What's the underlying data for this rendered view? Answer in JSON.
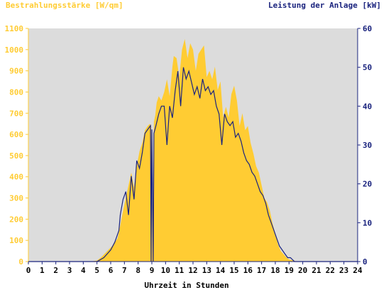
{
  "chart_data": {
    "type": "area",
    "title_left": "Bestrahlungsstärke [W/qm]",
    "title_right": "Leistung der Anlage [kW]",
    "xlabel": "Uhrzeit in Stunden",
    "xlim": [
      0,
      24
    ],
    "x_ticks": [
      "0",
      "1",
      "2",
      "3",
      "4",
      "5",
      "6",
      "7",
      "8",
      "9",
      "10",
      "11",
      "12",
      "13",
      "14",
      "15",
      "16",
      "17",
      "18",
      "19",
      "20",
      "21",
      "22",
      "23",
      "24"
    ],
    "y_left": {
      "lim": [
        0,
        1100
      ],
      "ticks": [
        "0",
        "100",
        "200",
        "300",
        "400",
        "500",
        "600",
        "700",
        "800",
        "900",
        "1000",
        "1100"
      ],
      "color": "#ffcc33"
    },
    "y_right": {
      "lim": [
        0,
        60
      ],
      "ticks": [
        "0",
        "10",
        "20",
        "30",
        "40",
        "50",
        "60"
      ],
      "color": "#1a237e"
    },
    "plot_background": "#dcdcdc",
    "grid": false,
    "series": [
      {
        "kind": "area",
        "axis": "left",
        "color": "#ffcc33",
        "x": [
          0,
          4.5,
          5.0,
          5.3,
          5.6,
          5.9,
          6.2,
          6.5,
          6.7,
          6.9,
          7.1,
          7.3,
          7.5,
          7.7,
          7.9,
          8.1,
          8.3,
          8.5,
          8.7,
          8.85,
          8.95,
          9.05,
          9.15,
          9.25,
          9.35,
          9.5,
          9.7,
          9.9,
          10.1,
          10.3,
          10.5,
          10.6,
          10.8,
          11.0,
          11.2,
          11.4,
          11.6,
          11.8,
          12.0,
          12.2,
          12.4,
          12.6,
          12.8,
          13.0,
          13.2,
          13.4,
          13.6,
          13.8,
          14.0,
          14.2,
          14.4,
          14.6,
          14.8,
          15.0,
          15.2,
          15.4,
          15.6,
          15.8,
          16.0,
          16.2,
          16.4,
          16.6,
          16.8,
          17.0,
          17.2,
          17.4,
          17.6,
          17.8,
          18.0,
          18.2,
          18.4,
          18.6,
          18.8,
          19.0,
          19.3,
          19.6,
          20.0,
          20.3,
          20.6,
          21.0,
          24
        ],
        "y": [
          0,
          0,
          5,
          20,
          40,
          60,
          80,
          110,
          170,
          240,
          300,
          360,
          420,
          350,
          450,
          520,
          560,
          620,
          640,
          650,
          640,
          0,
          660,
          690,
          750,
          780,
          760,
          800,
          860,
          780,
          920,
          970,
          960,
          870,
          1000,
          1050,
          960,
          1030,
          1000,
          900,
          980,
          1000,
          1020,
          870,
          900,
          860,
          920,
          810,
          850,
          680,
          730,
          680,
          790,
          830,
          760,
          640,
          700,
          620,
          640,
          560,
          510,
          450,
          420,
          360,
          300,
          280,
          240,
          180,
          130,
          80,
          50,
          35,
          20,
          10,
          5,
          0,
          0,
          0,
          0,
          0,
          0
        ]
      },
      {
        "kind": "line",
        "axis": "right",
        "color": "#1a237e",
        "x": [
          0,
          5.0,
          5.5,
          6.0,
          6.3,
          6.6,
          6.7,
          6.9,
          7.1,
          7.3,
          7.5,
          7.7,
          7.9,
          8.1,
          8.3,
          8.5,
          8.7,
          8.9,
          8.95,
          9.0,
          9.1,
          9.15,
          9.3,
          9.5,
          9.7,
          9.9,
          10.1,
          10.3,
          10.5,
          10.7,
          10.9,
          11.1,
          11.3,
          11.5,
          11.7,
          11.9,
          12.1,
          12.3,
          12.5,
          12.7,
          12.9,
          13.1,
          13.3,
          13.5,
          13.7,
          13.9,
          14.1,
          14.3,
          14.5,
          14.7,
          14.9,
          15.1,
          15.3,
          15.5,
          15.7,
          15.9,
          16.1,
          16.3,
          16.5,
          16.7,
          16.9,
          17.1,
          17.3,
          17.5,
          17.7,
          17.9,
          18.1,
          18.3,
          18.5,
          18.7,
          18.9,
          19.1,
          19.4,
          19.7,
          20.0,
          20.3,
          21.0,
          24
        ],
        "y": [
          0,
          0,
          1,
          3,
          5,
          8,
          12,
          16,
          18,
          12,
          22,
          16,
          26,
          24,
          28,
          33,
          34,
          35,
          0,
          34,
          0,
          33,
          35,
          38,
          40,
          40,
          30,
          40,
          37,
          44,
          49,
          40,
          50,
          47,
          49,
          46,
          43,
          45,
          42,
          47,
          44,
          45,
          43,
          44,
          40,
          38,
          30,
          38,
          36,
          35,
          36,
          32,
          33,
          31,
          28,
          26,
          25,
          23,
          22,
          20,
          18,
          17,
          15,
          12,
          10,
          8,
          6,
          4,
          3,
          2,
          1,
          1,
          0,
          0,
          0,
          0,
          0,
          0
        ]
      }
    ]
  }
}
